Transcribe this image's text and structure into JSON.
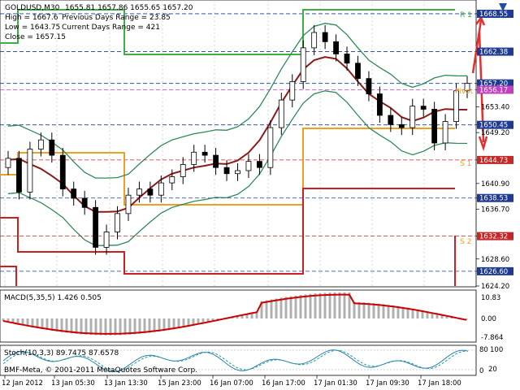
{
  "header": {
    "symbol_line": "GOLDUSD,M30",
    "ohlc_line": "1655.81 1657.86 1655.65 1657.20",
    "high": "High = 1667.6",
    "prev_range": "Previous Days Range = 23.85",
    "low": "Low = 1643.75",
    "curr_range": "Current Days Range = 421",
    "close": "Close = 1657.15"
  },
  "level_labels": {
    "r1": "R 1",
    "pivot": "Pivot",
    "s1": "S 1",
    "s2": "S 2"
  },
  "price_ticks": [
    "1668.55",
    "1662.38",
    "1657.20",
    "1656.17",
    "1653.40",
    "1650.45",
    "1649.20",
    "1644.73",
    "1640.90",
    "1638.53",
    "1636.70",
    "1632.32",
    "1628.60",
    "1626.60",
    "1624.20"
  ],
  "macd": {
    "label": "MACD(5,35,5) 1.426 0.505",
    "ticks": [
      "10.83",
      "0.00",
      "-7.864"
    ]
  },
  "stoch": {
    "label": "Stoch(10,3,3) 89.7475 87.6578",
    "ticks": [
      "100",
      "80",
      "20",
      "0"
    ]
  },
  "copyright": "BMF-Meta, © 2001-2011 MetaQuotes Software Corp.",
  "time_ticks": [
    "12 Jan 2012",
    "13 Jan 05:30",
    "13 Jan 13:30",
    "15 Jan 23:00",
    "16 Jan 07:00",
    "16 Jan 17:00",
    "17 Jan 01:30",
    "17 Jan 09:30",
    "17 Jan 18:00"
  ],
  "colors": {
    "up": "#000000",
    "ma_fast": "#8b1a1a",
    "bands": "#2e8b57",
    "resistance": "#3cb043",
    "pivot": "#f0a020",
    "support": "#cc1f1f",
    "macd_line": "#cc0000",
    "macd_hist": "#b0b0b0",
    "stoch_main": "#2c7fb8",
    "stoch_signal": "#2a9d8f",
    "arrow": "#e03030"
  },
  "chart_data": {
    "type": "line",
    "title": "GOLDUSD,M30",
    "ylim": [
      1624.2,
      1670.0
    ],
    "series": [
      {
        "name": "Close",
        "values": [
          1645.0,
          1639.5,
          1646.5,
          1648.0,
          1645.5,
          1640.0,
          1638.5,
          1637.0,
          1630.5,
          1633.0,
          1636.0,
          1639.0,
          1640.0,
          1639.0,
          1641.0,
          1642.0,
          1644.0,
          1646.0,
          1645.5,
          1643.5,
          1642.5,
          1643.0,
          1644.5,
          1643.5,
          1650.0,
          1654.5,
          1657.5,
          1663.0,
          1665.5,
          1664.0,
          1662.0,
          1660.5,
          1658.0,
          1655.5,
          1652.0,
          1650.5,
          1650.0,
          1653.5,
          1653.0,
          1647.5,
          1651.0,
          1656.0,
          1657.2
        ]
      }
    ]
  }
}
